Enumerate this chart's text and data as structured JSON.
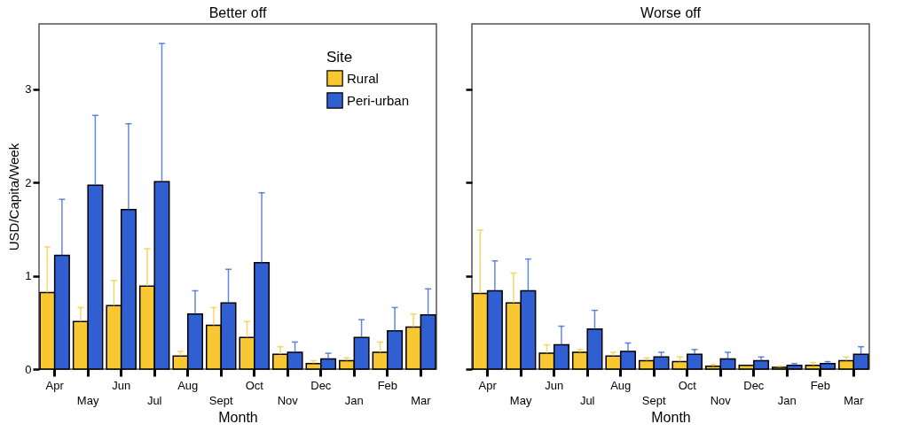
{
  "chart_data": [
    {
      "type": "bar",
      "title": "Better off",
      "xlabel": "Month",
      "ylabel": "USD/Capita/Week",
      "legend_title": "Site",
      "legend": "top right",
      "categories": [
        "Apr",
        "May",
        "Jun",
        "Jul",
        "Aug",
        "Sept",
        "Oct",
        "Nov",
        "Dec",
        "Jan",
        "Feb",
        "Mar"
      ],
      "ylim": [
        0,
        3.7
      ],
      "yticks": [
        0,
        1,
        2,
        3
      ],
      "series": [
        {
          "name": "Rural",
          "color": "#f7c832",
          "values": [
            0.82,
            0.51,
            0.68,
            0.89,
            0.14,
            0.47,
            0.34,
            0.16,
            0.06,
            0.09,
            0.18,
            0.45
          ],
          "errors": [
            [
              0.82,
              1.31
            ],
            [
              0.51,
              0.66
            ],
            [
              0.68,
              0.95
            ],
            [
              0.89,
              1.29
            ],
            [
              0.14,
              0.19
            ],
            [
              0.47,
              0.66
            ],
            [
              0.34,
              0.51
            ],
            [
              0.16,
              0.24
            ],
            [
              0.06,
              0.09
            ],
            [
              0.09,
              0.12
            ],
            [
              0.18,
              0.29
            ],
            [
              0.45,
              0.59
            ]
          ]
        },
        {
          "name": "Peri-urban",
          "color": "#2f5fd0",
          "values": [
            1.22,
            1.97,
            1.71,
            2.01,
            0.59,
            0.71,
            1.14,
            0.18,
            0.11,
            0.34,
            0.41,
            0.58
          ],
          "errors": [
            [
              1.22,
              1.82
            ],
            [
              1.97,
              2.72
            ],
            [
              1.71,
              2.63
            ],
            [
              2.01,
              3.49
            ],
            [
              0.59,
              0.84
            ],
            [
              0.71,
              1.07
            ],
            [
              1.14,
              1.89
            ],
            [
              0.18,
              0.29
            ],
            [
              0.11,
              0.17
            ],
            [
              0.34,
              0.53
            ],
            [
              0.41,
              0.66
            ],
            [
              0.58,
              0.86
            ]
          ]
        }
      ]
    },
    {
      "type": "bar",
      "title": "Worse off",
      "xlabel": "Month",
      "tick_labels": "x",
      "categories": [
        "Apr",
        "May",
        "Jun",
        "Jul",
        "Aug",
        "Sept",
        "Oct",
        "Nov",
        "Dec",
        "Jan",
        "Feb",
        "Mar"
      ],
      "ylim": [
        0,
        3.7
      ],
      "yticks": [
        0,
        1,
        2,
        3
      ],
      "series": [
        {
          "color": "#f7c832",
          "values": [
            0.81,
            0.71,
            0.17,
            0.18,
            0.14,
            0.09,
            0.08,
            0.03,
            0.04,
            0.02,
            0.04,
            0.09
          ],
          "errors": [
            [
              0.81,
              1.49
            ],
            [
              0.71,
              1.03
            ],
            [
              0.17,
              0.26
            ],
            [
              0.18,
              0.21
            ],
            [
              0.14,
              0.18
            ],
            [
              0.09,
              0.12
            ],
            [
              0.08,
              0.13
            ],
            [
              0.03,
              0.05
            ],
            null,
            [
              0.02,
              0.03
            ],
            [
              0.04,
              0.07
            ],
            [
              0.09,
              0.13
            ]
          ]
        },
        {
          "color": "#2f5fd0",
          "values": [
            0.84,
            0.84,
            0.26,
            0.43,
            0.19,
            0.13,
            0.16,
            0.11,
            0.09,
            0.04,
            0.06,
            0.16
          ],
          "errors": [
            [
              0.84,
              1.16
            ],
            [
              0.84,
              1.18
            ],
            [
              0.26,
              0.46
            ],
            [
              0.43,
              0.63
            ],
            [
              0.19,
              0.28
            ],
            [
              0.13,
              0.18
            ],
            [
              0.16,
              0.21
            ],
            [
              0.11,
              0.18
            ],
            [
              0.09,
              0.13
            ],
            [
              0.04,
              0.06
            ],
            [
              0.06,
              0.08
            ],
            [
              0.16,
              0.24
            ]
          ]
        }
      ]
    }
  ]
}
